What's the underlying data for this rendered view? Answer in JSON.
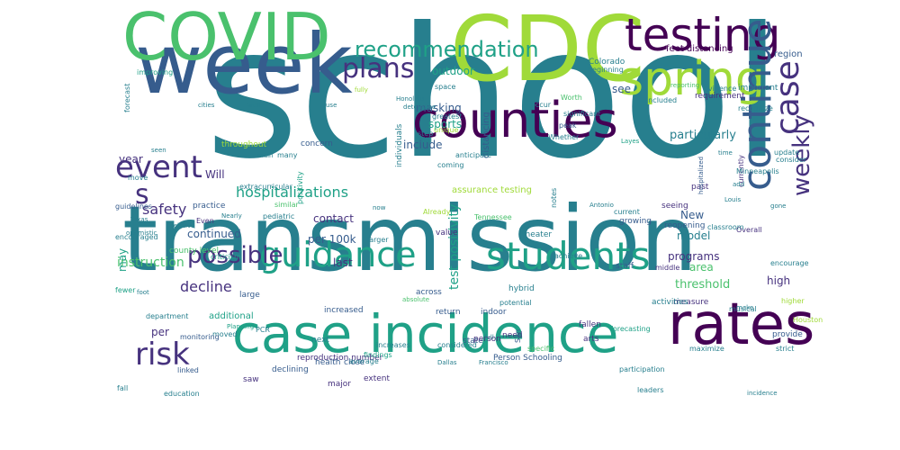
{
  "word_cloud": {
    "palette": [
      "#440154",
      "#46327e",
      "#365c8d",
      "#277f8e",
      "#1fa187",
      "#4ac16d",
      "#a0da39",
      "#fde725"
    ],
    "words": [
      {
        "text": "school"
      },
      {
        "text": "transmission"
      },
      {
        "text": "week"
      },
      {
        "text": "CDC"
      },
      {
        "text": "COVID"
      },
      {
        "text": "case incidence"
      },
      {
        "text": "counties"
      },
      {
        "text": "spring"
      },
      {
        "text": "testing"
      },
      {
        "text": "rates"
      },
      {
        "text": "students"
      },
      {
        "text": "guidance"
      },
      {
        "text": "continue"
      },
      {
        "text": "event"
      },
      {
        "text": "recommendation"
      },
      {
        "text": "plans"
      },
      {
        "text": "case"
      },
      {
        "text": "risk"
      },
      {
        "text": "weekly"
      },
      {
        "text": "possible"
      },
      {
        "text": "s"
      },
      {
        "text": "hospitalizations"
      },
      {
        "text": "safety"
      },
      {
        "text": "decline"
      },
      {
        "text": "instruction"
      },
      {
        "text": "area"
      },
      {
        "text": "threshold"
      },
      {
        "text": "particularly"
      },
      {
        "text": "programs"
      },
      {
        "text": "model"
      },
      {
        "text": "high"
      },
      {
        "text": "contact"
      },
      {
        "text": "per 100k"
      },
      {
        "text": "test positivity"
      },
      {
        "text": "include"
      },
      {
        "text": "continued"
      },
      {
        "text": "masking"
      },
      {
        "text": "sports"
      },
      {
        "text": "outdoor"
      },
      {
        "text": "last"
      },
      {
        "text": "Will"
      },
      {
        "text": "year"
      },
      {
        "text": "per"
      },
      {
        "text": "may"
      },
      {
        "text": "New"
      },
      {
        "text": "see"
      },
      {
        "text": "feet distancing"
      },
      {
        "text": "region"
      },
      {
        "text": "distancing"
      },
      {
        "text": "reopening"
      },
      {
        "text": "additional"
      },
      {
        "text": "assurance testing"
      },
      {
        "text": "reproduction number"
      },
      {
        "text": "Person Schooling"
      },
      {
        "text": "throughout"
      },
      {
        "text": "concern"
      },
      {
        "text": "individuals"
      },
      {
        "text": "value"
      },
      {
        "text": "increased"
      },
      {
        "text": "practice"
      },
      {
        "text": "county level"
      },
      {
        "text": "measure"
      },
      {
        "text": "across"
      },
      {
        "text": "return"
      },
      {
        "text": "past"
      },
      {
        "text": "seeing"
      },
      {
        "text": "current"
      },
      {
        "text": "activities"
      },
      {
        "text": "Colorado"
      },
      {
        "text": "requirement"
      },
      {
        "text": "important"
      },
      {
        "text": "evidence"
      },
      {
        "text": "recognize"
      },
      {
        "text": "peak"
      },
      {
        "text": "declining"
      },
      {
        "text": "state"
      },
      {
        "text": "person"
      },
      {
        "text": "fallen"
      },
      {
        "text": "large"
      },
      {
        "text": "hybrid"
      },
      {
        "text": "indoor"
      },
      {
        "text": "growing"
      },
      {
        "text": "theater"
      },
      {
        "text": "staff"
      },
      {
        "text": "pediatric"
      },
      {
        "text": "extracurricular"
      },
      {
        "text": "criticism"
      },
      {
        "text": "guidelines"
      },
      {
        "text": "encouraged"
      },
      {
        "text": "move"
      },
      {
        "text": "forecast"
      },
      {
        "text": "provide"
      },
      {
        "text": "encourage"
      },
      {
        "text": "consider"
      },
      {
        "text": "update"
      },
      {
        "text": "Overall"
      },
      {
        "text": "higher"
      },
      {
        "text": "strict"
      },
      {
        "text": "health"
      },
      {
        "text": "close"
      },
      {
        "text": "major"
      },
      {
        "text": "extent"
      },
      {
        "text": "arts"
      },
      {
        "text": "need"
      },
      {
        "text": "next"
      },
      {
        "text": "saw"
      },
      {
        "text": "fall"
      },
      {
        "text": "linked"
      },
      {
        "text": "moved"
      },
      {
        "text": "fewer"
      },
      {
        "text": "department"
      },
      {
        "text": "education"
      },
      {
        "text": "leaders"
      },
      {
        "text": "participation"
      },
      {
        "text": "forecasting"
      },
      {
        "text": "maximize"
      },
      {
        "text": "included"
      },
      {
        "text": "Whether"
      },
      {
        "text": "achieve"
      },
      {
        "text": "middle"
      },
      {
        "text": "musical"
      },
      {
        "text": "occur"
      },
      {
        "text": "greatest"
      },
      {
        "text": "unique"
      },
      {
        "text": "still"
      },
      {
        "text": "step"
      },
      {
        "text": "coming"
      },
      {
        "text": "anticipate"
      },
      {
        "text": "considered"
      },
      {
        "text": "potential"
      },
      {
        "text": "similar"
      },
      {
        "text": "Even"
      },
      {
        "text": "Houston"
      },
      {
        "text": "improving"
      },
      {
        "text": "Tennessee"
      },
      {
        "text": "Already"
      },
      {
        "text": "monitoring"
      },
      {
        "text": "positivity"
      },
      {
        "text": "many"
      },
      {
        "text": "classroom"
      },
      {
        "text": "Worth"
      },
      {
        "text": "significant"
      },
      {
        "text": "space"
      },
      {
        "text": "beginning"
      },
      {
        "text": "currently"
      },
      {
        "text": "Minneapolis"
      },
      {
        "text": "reporting"
      },
      {
        "text": "San"
      },
      {
        "text": "larger"
      },
      {
        "text": "increases"
      },
      {
        "text": "notes"
      },
      {
        "text": "PCR"
      },
      {
        "text": "findings"
      },
      {
        "text": "specific"
      },
      {
        "text": "average"
      },
      {
        "text": "cities"
      },
      {
        "text": "well"
      },
      {
        "text": "relative"
      },
      {
        "text": "Honolulu"
      },
      {
        "text": "Louis"
      },
      {
        "text": "Antonio"
      },
      {
        "text": "Layes"
      },
      {
        "text": "Texas"
      },
      {
        "text": "optimistic"
      },
      {
        "text": "foot"
      },
      {
        "text": "Planning"
      },
      {
        "text": "hospitalized"
      },
      {
        "text": "time"
      },
      {
        "text": "add"
      },
      {
        "text": "gone"
      },
      {
        "text": "make"
      },
      {
        "text": "incidence"
      },
      {
        "text": "Dallas"
      },
      {
        "text": "Francisco"
      },
      {
        "text": "absolute"
      },
      {
        "text": "Nearly"
      },
      {
        "text": "determine"
      },
      {
        "text": "fall"
      },
      {
        "text": "now"
      },
      {
        "text": "seen"
      },
      {
        "text": "main"
      },
      {
        "text": "use"
      },
      {
        "text": "fully"
      },
      {
        "text": "full"
      },
      {
        "text": "Even"
      },
      {
        "text": "hard"
      }
    ]
  }
}
